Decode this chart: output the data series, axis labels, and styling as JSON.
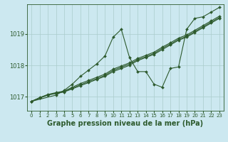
{
  "title": "Graphe pression niveau de la mer (hPa)",
  "bg_color": "#cce8f0",
  "grid_color": "#aacccc",
  "line_color": "#2d5a2d",
  "xlim": [
    -0.5,
    23.5
  ],
  "ylim": [
    1016.55,
    1019.95
  ],
  "yticks": [
    1017,
    1018,
    1019
  ],
  "xticks": [
    0,
    1,
    2,
    3,
    4,
    5,
    6,
    7,
    8,
    9,
    10,
    11,
    12,
    13,
    14,
    15,
    16,
    17,
    18,
    19,
    20,
    21,
    22,
    23
  ],
  "series": [
    {
      "x": [
        0,
        1,
        2,
        3,
        4,
        5,
        6,
        7,
        8,
        9,
        10,
        11,
        12,
        13,
        14,
        15,
        16,
        17,
        18,
        19,
        20,
        21,
        22,
        23
      ],
      "y": [
        1016.85,
        1016.95,
        1017.05,
        1017.1,
        1017.15,
        1017.25,
        1017.35,
        1017.45,
        1017.55,
        1017.65,
        1017.8,
        1017.9,
        1018.0,
        1018.15,
        1018.25,
        1018.35,
        1018.5,
        1018.65,
        1018.8,
        1018.9,
        1019.05,
        1019.2,
        1019.35,
        1019.5
      ]
    },
    {
      "x": [
        0,
        1,
        2,
        3,
        4,
        5,
        6,
        7,
        8,
        9,
        10,
        11,
        12,
        13,
        14,
        15,
        16,
        17,
        18,
        19,
        20,
        21,
        22,
        23
      ],
      "y": [
        1016.85,
        1016.97,
        1017.07,
        1017.13,
        1017.18,
        1017.3,
        1017.42,
        1017.52,
        1017.62,
        1017.72,
        1017.88,
        1017.98,
        1018.08,
        1018.22,
        1018.32,
        1018.42,
        1018.58,
        1018.72,
        1018.87,
        1018.97,
        1019.12,
        1019.27,
        1019.42,
        1019.57
      ]
    },
    {
      "x": [
        0,
        3,
        4,
        5,
        6,
        7,
        8,
        9,
        10,
        11,
        12,
        13,
        14,
        15,
        16,
        17,
        18,
        19,
        20,
        21,
        22,
        23
      ],
      "y": [
        1016.85,
        1017.05,
        1017.2,
        1017.4,
        1017.65,
        1017.85,
        1018.05,
        1018.3,
        1018.9,
        1019.15,
        1018.25,
        1017.8,
        1017.8,
        1017.4,
        1017.3,
        1017.9,
        1017.95,
        1019.15,
        1019.5,
        1019.55,
        1019.7,
        1019.85
      ]
    },
    {
      "x": [
        0,
        1,
        2,
        3,
        4,
        5,
        6,
        7,
        8,
        9,
        10,
        11,
        12,
        13,
        14,
        15,
        16,
        17,
        18,
        19,
        20,
        21,
        22,
        23
      ],
      "y": [
        1016.85,
        1016.96,
        1017.06,
        1017.11,
        1017.16,
        1017.27,
        1017.38,
        1017.48,
        1017.58,
        1017.68,
        1017.84,
        1017.94,
        1018.04,
        1018.18,
        1018.28,
        1018.38,
        1018.54,
        1018.68,
        1018.83,
        1018.93,
        1019.08,
        1019.23,
        1019.38,
        1019.53
      ]
    }
  ],
  "marker": "D",
  "markersize": 2.0,
  "linewidth": 0.8,
  "title_fontsize": 7,
  "ytick_fontsize": 6,
  "xtick_fontsize": 5
}
